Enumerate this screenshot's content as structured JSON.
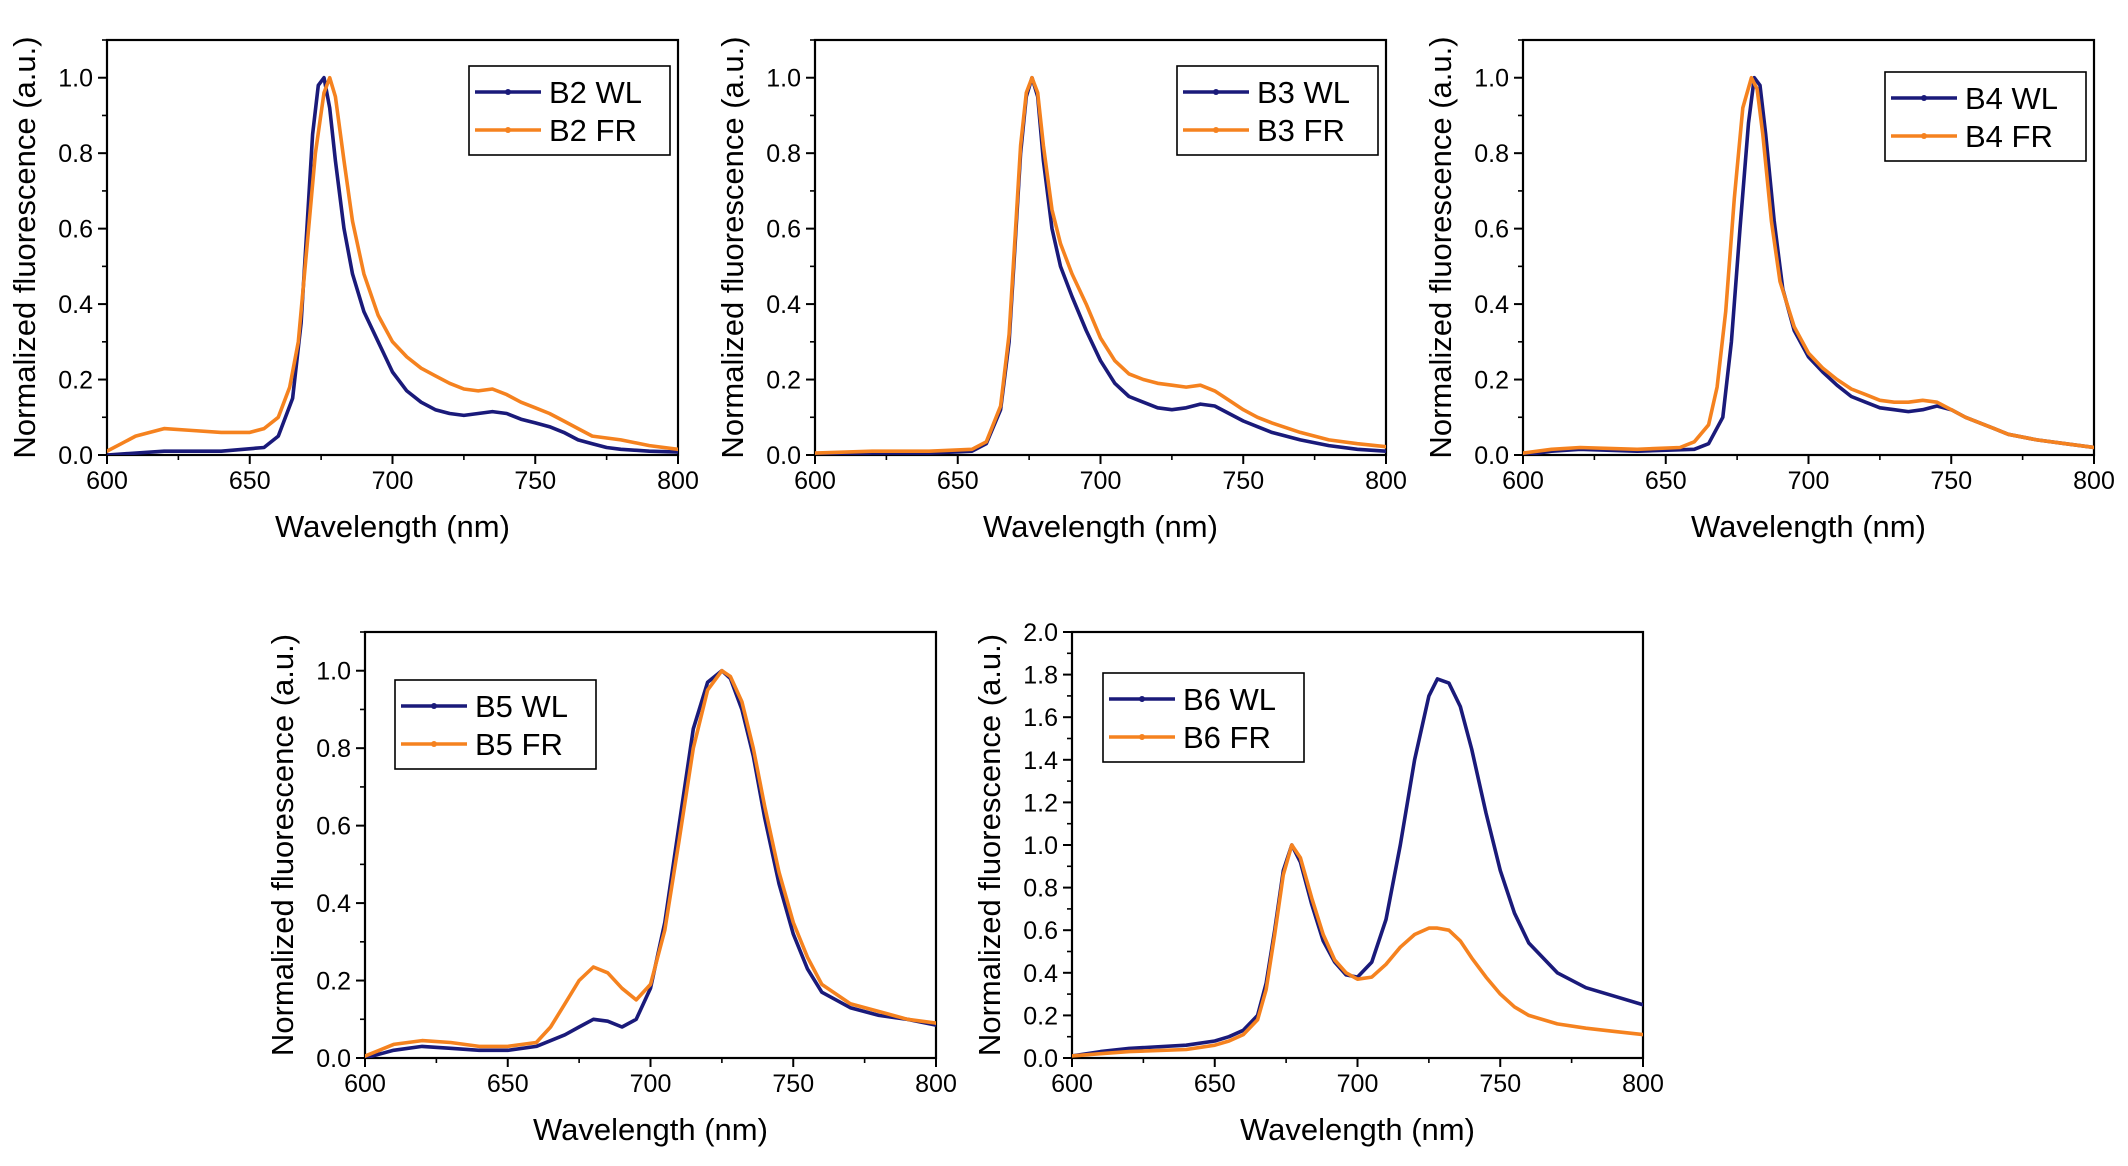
{
  "colors": {
    "WL": "#1a1a7a",
    "FR": "#f5821f"
  },
  "chart_data": [
    {
      "type": "line",
      "xlabel": "Wavelength (nm)",
      "ylabel": "Normalized fluorescence (a.u.)",
      "xlim": [
        600,
        800
      ],
      "ylim": [
        0,
        1.1
      ],
      "xticks": [
        600,
        650,
        700,
        750,
        800
      ],
      "yticks": [
        0.0,
        0.2,
        0.4,
        0.6,
        0.8,
        1.0
      ],
      "legend_position": "top-right",
      "series": [
        {
          "name": "B2 WL",
          "color_key": "WL",
          "x": [
            600,
            620,
            640,
            655,
            660,
            665,
            668,
            670,
            672,
            674,
            676,
            678,
            680,
            683,
            686,
            690,
            695,
            700,
            705,
            710,
            715,
            720,
            725,
            730,
            735,
            740,
            745,
            750,
            755,
            760,
            765,
            770,
            775,
            780,
            790,
            800
          ],
          "y": [
            0.0,
            0.01,
            0.01,
            0.02,
            0.05,
            0.15,
            0.35,
            0.6,
            0.85,
            0.98,
            1.0,
            0.92,
            0.78,
            0.6,
            0.48,
            0.38,
            0.3,
            0.22,
            0.17,
            0.14,
            0.12,
            0.11,
            0.105,
            0.11,
            0.115,
            0.11,
            0.095,
            0.085,
            0.075,
            0.06,
            0.04,
            0.03,
            0.02,
            0.015,
            0.01,
            0.008
          ]
        },
        {
          "name": "B2 FR",
          "color_key": "FR",
          "x": [
            600,
            605,
            610,
            620,
            630,
            640,
            650,
            655,
            660,
            664,
            667,
            670,
            673,
            676,
            678,
            680,
            683,
            686,
            690,
            695,
            700,
            705,
            710,
            715,
            720,
            725,
            730,
            735,
            740,
            745,
            750,
            755,
            760,
            765,
            770,
            780,
            790,
            800
          ],
          "y": [
            0.01,
            0.03,
            0.05,
            0.07,
            0.065,
            0.06,
            0.06,
            0.07,
            0.1,
            0.18,
            0.3,
            0.55,
            0.8,
            0.96,
            1.0,
            0.95,
            0.78,
            0.62,
            0.48,
            0.37,
            0.3,
            0.26,
            0.23,
            0.21,
            0.19,
            0.175,
            0.17,
            0.175,
            0.16,
            0.14,
            0.125,
            0.11,
            0.09,
            0.07,
            0.05,
            0.04,
            0.025,
            0.015
          ]
        }
      ]
    },
    {
      "type": "line",
      "xlabel": "Wavelength (nm)",
      "ylabel": "Normalized fluorescence (a.u.)",
      "xlim": [
        600,
        800
      ],
      "ylim": [
        0,
        1.1
      ],
      "xticks": [
        600,
        650,
        700,
        750,
        800
      ],
      "yticks": [
        0.0,
        0.2,
        0.4,
        0.6,
        0.8,
        1.0
      ],
      "legend_position": "top-right",
      "series": [
        {
          "name": "B3 WL",
          "color_key": "WL",
          "x": [
            600,
            620,
            640,
            655,
            660,
            665,
            668,
            670,
            672,
            674,
            676,
            678,
            680,
            683,
            686,
            690,
            695,
            700,
            705,
            710,
            715,
            720,
            725,
            730,
            735,
            740,
            745,
            750,
            755,
            760,
            770,
            780,
            790,
            800
          ],
          "y": [
            0.0,
            0.005,
            0.005,
            0.01,
            0.03,
            0.12,
            0.3,
            0.55,
            0.8,
            0.95,
            1.0,
            0.95,
            0.78,
            0.6,
            0.5,
            0.42,
            0.33,
            0.25,
            0.19,
            0.155,
            0.14,
            0.125,
            0.12,
            0.125,
            0.135,
            0.13,
            0.11,
            0.09,
            0.075,
            0.06,
            0.04,
            0.025,
            0.015,
            0.01
          ]
        },
        {
          "name": "B3 FR",
          "color_key": "FR",
          "x": [
            600,
            620,
            640,
            655,
            660,
            665,
            668,
            670,
            672,
            674,
            676,
            678,
            680,
            683,
            686,
            690,
            695,
            700,
            705,
            710,
            715,
            720,
            725,
            730,
            735,
            740,
            745,
            750,
            755,
            760,
            770,
            780,
            790,
            800
          ],
          "y": [
            0.005,
            0.01,
            0.01,
            0.015,
            0.035,
            0.13,
            0.32,
            0.57,
            0.82,
            0.96,
            1.0,
            0.96,
            0.82,
            0.65,
            0.56,
            0.48,
            0.4,
            0.31,
            0.25,
            0.215,
            0.2,
            0.19,
            0.185,
            0.18,
            0.185,
            0.17,
            0.145,
            0.12,
            0.1,
            0.085,
            0.06,
            0.04,
            0.03,
            0.022
          ]
        }
      ]
    },
    {
      "type": "line",
      "xlabel": "Wavelength (nm)",
      "ylabel": "Normalized fluorescence (a.u.)",
      "xlim": [
        600,
        800
      ],
      "ylim": [
        0,
        1.1
      ],
      "xticks": [
        600,
        650,
        700,
        750,
        800
      ],
      "yticks": [
        0.0,
        0.2,
        0.4,
        0.6,
        0.8,
        1.0
      ],
      "legend_position": "top-right",
      "series": [
        {
          "name": "B4 WL",
          "color_key": "WL",
          "x": [
            600,
            610,
            620,
            640,
            660,
            665,
            670,
            673,
            676,
            679,
            681,
            683,
            685,
            688,
            691,
            695,
            700,
            705,
            710,
            715,
            720,
            725,
            730,
            735,
            740,
            745,
            750,
            755,
            760,
            765,
            770,
            780,
            790,
            800
          ],
          "y": [
            0.0,
            0.01,
            0.015,
            0.01,
            0.015,
            0.03,
            0.1,
            0.3,
            0.6,
            0.88,
            1.0,
            0.98,
            0.85,
            0.62,
            0.44,
            0.33,
            0.26,
            0.22,
            0.185,
            0.155,
            0.14,
            0.125,
            0.12,
            0.115,
            0.12,
            0.13,
            0.12,
            0.1,
            0.085,
            0.07,
            0.055,
            0.04,
            0.03,
            0.02
          ]
        },
        {
          "name": "B4 FR",
          "color_key": "FR",
          "x": [
            600,
            610,
            620,
            640,
            655,
            660,
            665,
            668,
            671,
            674,
            677,
            680,
            682,
            684,
            687,
            690,
            695,
            700,
            705,
            710,
            715,
            720,
            725,
            730,
            735,
            740,
            745,
            750,
            755,
            760,
            765,
            770,
            780,
            790,
            800
          ],
          "y": [
            0.005,
            0.015,
            0.02,
            0.015,
            0.02,
            0.035,
            0.08,
            0.18,
            0.38,
            0.68,
            0.92,
            1.0,
            0.97,
            0.85,
            0.62,
            0.46,
            0.34,
            0.27,
            0.23,
            0.2,
            0.175,
            0.16,
            0.145,
            0.14,
            0.14,
            0.145,
            0.14,
            0.12,
            0.1,
            0.085,
            0.07,
            0.055,
            0.04,
            0.03,
            0.02
          ]
        }
      ]
    },
    {
      "type": "line",
      "xlabel": "Wavelength (nm)",
      "ylabel": "Normalized fluorescence (a.u.)",
      "xlim": [
        600,
        800
      ],
      "ylim": [
        0,
        1.1
      ],
      "xticks": [
        600,
        650,
        700,
        750,
        800
      ],
      "yticks": [
        0.0,
        0.2,
        0.4,
        0.6,
        0.8,
        1.0
      ],
      "legend_position": "top-left",
      "series": [
        {
          "name": "B5 WL",
          "color_key": "WL",
          "x": [
            600,
            610,
            620,
            630,
            640,
            650,
            660,
            670,
            675,
            680,
            685,
            690,
            695,
            700,
            705,
            710,
            715,
            720,
            725,
            728,
            732,
            736,
            740,
            745,
            750,
            755,
            760,
            770,
            780,
            790,
            800
          ],
          "y": [
            0.0,
            0.02,
            0.03,
            0.025,
            0.02,
            0.02,
            0.03,
            0.06,
            0.08,
            0.1,
            0.095,
            0.08,
            0.1,
            0.18,
            0.35,
            0.6,
            0.85,
            0.97,
            1.0,
            0.98,
            0.9,
            0.78,
            0.62,
            0.45,
            0.32,
            0.23,
            0.17,
            0.13,
            0.11,
            0.1,
            0.085
          ]
        },
        {
          "name": "B5 FR",
          "color_key": "FR",
          "x": [
            600,
            610,
            620,
            630,
            640,
            650,
            660,
            665,
            670,
            675,
            680,
            685,
            690,
            695,
            700,
            705,
            710,
            715,
            720,
            725,
            728,
            732,
            736,
            740,
            745,
            750,
            755,
            760,
            770,
            780,
            790,
            800
          ],
          "y": [
            0.005,
            0.035,
            0.045,
            0.04,
            0.03,
            0.03,
            0.04,
            0.08,
            0.14,
            0.2,
            0.235,
            0.22,
            0.18,
            0.15,
            0.19,
            0.33,
            0.56,
            0.8,
            0.95,
            1.0,
            0.985,
            0.92,
            0.8,
            0.65,
            0.48,
            0.35,
            0.26,
            0.19,
            0.14,
            0.12,
            0.1,
            0.09
          ]
        }
      ]
    },
    {
      "type": "line",
      "xlabel": "Wavelength (nm)",
      "ylabel": "Normalized fluorescence (a.u.)",
      "xlim": [
        600,
        800
      ],
      "ylim": [
        0,
        2.0
      ],
      "xticks": [
        600,
        650,
        700,
        750,
        800
      ],
      "yticks": [
        0.0,
        0.2,
        0.4,
        0.6,
        0.8,
        1.0,
        1.2,
        1.4,
        1.6,
        1.8,
        2.0
      ],
      "legend_position": "top-left",
      "series": [
        {
          "name": "B6 WL",
          "color_key": "WL",
          "x": [
            600,
            610,
            620,
            640,
            650,
            655,
            660,
            665,
            668,
            671,
            674,
            677,
            680,
            684,
            688,
            692,
            696,
            700,
            705,
            710,
            715,
            720,
            725,
            728,
            732,
            736,
            740,
            745,
            750,
            755,
            760,
            770,
            780,
            790,
            800
          ],
          "y": [
            0.01,
            0.03,
            0.045,
            0.06,
            0.08,
            0.1,
            0.13,
            0.2,
            0.35,
            0.6,
            0.88,
            1.0,
            0.92,
            0.72,
            0.55,
            0.45,
            0.39,
            0.38,
            0.45,
            0.65,
            1.0,
            1.4,
            1.7,
            1.78,
            1.76,
            1.65,
            1.45,
            1.15,
            0.88,
            0.68,
            0.54,
            0.4,
            0.33,
            0.29,
            0.25
          ]
        },
        {
          "name": "B6 FR",
          "color_key": "FR",
          "x": [
            600,
            610,
            620,
            640,
            650,
            655,
            660,
            665,
            668,
            671,
            674,
            677,
            680,
            684,
            688,
            692,
            696,
            700,
            705,
            710,
            715,
            720,
            725,
            728,
            732,
            736,
            740,
            745,
            750,
            755,
            760,
            770,
            780,
            790,
            800
          ],
          "y": [
            0.01,
            0.02,
            0.03,
            0.04,
            0.06,
            0.08,
            0.11,
            0.18,
            0.32,
            0.58,
            0.86,
            1.0,
            0.94,
            0.75,
            0.58,
            0.46,
            0.4,
            0.37,
            0.38,
            0.44,
            0.52,
            0.58,
            0.61,
            0.61,
            0.6,
            0.55,
            0.47,
            0.38,
            0.3,
            0.24,
            0.2,
            0.16,
            0.14,
            0.125,
            0.11
          ]
        }
      ]
    }
  ]
}
